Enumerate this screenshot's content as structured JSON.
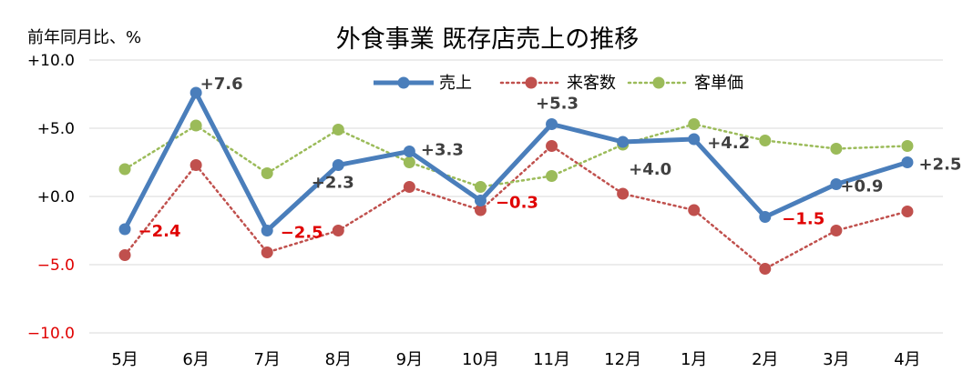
{
  "chart_data": {
    "type": "line",
    "title": "外食事業 既存店売上の推移",
    "ylabel": "前年同月比、%",
    "ylim": [
      -10,
      10
    ],
    "yticks": [
      "+10.0",
      "+5.0",
      "+0.0",
      "−5.0",
      "−10.0"
    ],
    "ytick_values": [
      10,
      5,
      0,
      -5,
      -10
    ],
    "categories": [
      "5月",
      "6月",
      "7月",
      "8月",
      "9月",
      "10月",
      "11月",
      "12月",
      "1月",
      "2月",
      "3月",
      "4月"
    ],
    "series": [
      {
        "name": "売上",
        "color": "#4a7ebb",
        "style": "solid",
        "values": [
          -2.4,
          7.6,
          -2.5,
          2.3,
          3.3,
          -0.3,
          5.3,
          4.0,
          4.2,
          -1.5,
          0.9,
          2.5
        ],
        "labels": [
          "−2.4",
          "+7.6",
          "−2.5",
          "+2.3",
          "+3.3",
          "−0.3",
          "+5.3",
          "+4.0",
          "+4.2",
          "−1.5",
          "+0.9",
          "+2.5"
        ]
      },
      {
        "name": "来客数",
        "color": "#c0504d",
        "style": "dotted",
        "values": [
          -4.3,
          2.3,
          -4.1,
          -2.5,
          0.7,
          -1.0,
          3.7,
          0.2,
          -1.0,
          -5.3,
          -2.5,
          -1.1
        ]
      },
      {
        "name": "客単価",
        "color": "#9bbb59",
        "style": "dotted",
        "values": [
          2.0,
          5.2,
          1.7,
          4.9,
          2.5,
          0.7,
          1.5,
          3.8,
          5.3,
          4.1,
          3.5,
          3.7
        ]
      }
    ],
    "grid": true,
    "legend_position": "top-center"
  }
}
